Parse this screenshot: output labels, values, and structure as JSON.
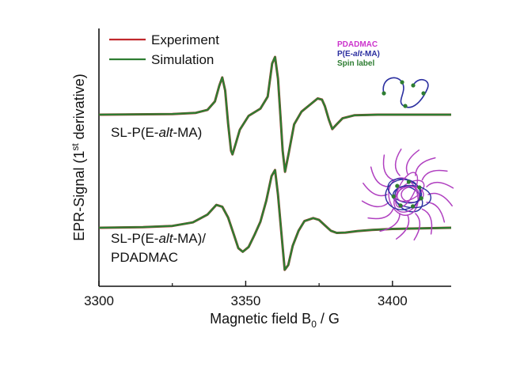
{
  "chart_data": {
    "type": "line",
    "xlabel_main": "Magnetic field B",
    "xlabel_sub": "0",
    "xlabel_unit": " / G",
    "ylabel_pre": "EPR-Signal (1",
    "ylabel_sup": "st",
    "ylabel_post": " derivative)",
    "xlim": [
      3300,
      3420
    ],
    "x_ticks": [
      "3300",
      "3350",
      "3400"
    ],
    "legend": [
      {
        "label": "Experiment",
        "color": "#c0282d"
      },
      {
        "label": "Simulation",
        "color": "#2e7d32"
      }
    ],
    "curve_labels": {
      "top": {
        "pre": "SL-P(E-",
        "ital": "alt",
        "post": "-MA)"
      },
      "bottom_line1": {
        "pre": "SL-P(E-",
        "ital": "alt",
        "post": "-MA)/"
      },
      "bottom_line2": "PDADMAC"
    },
    "series": [
      {
        "name": "SL-P(E-alt-MA)",
        "points": [
          [
            3300,
            0
          ],
          [
            3325,
            0.1
          ],
          [
            3333,
            0.3
          ],
          [
            3337,
            0.8
          ],
          [
            3339.5,
            2.2
          ],
          [
            3341,
            4.8
          ],
          [
            3342,
            6.2
          ],
          [
            3343,
            4
          ],
          [
            3344,
            -1.5
          ],
          [
            3345,
            -6
          ],
          [
            3345.5,
            -6.6
          ],
          [
            3346.5,
            -5
          ],
          [
            3348,
            -2.5
          ],
          [
            3351,
            -0.2
          ],
          [
            3355,
            1
          ],
          [
            3357.5,
            3
          ],
          [
            3359,
            8.5
          ],
          [
            3360,
            9.6
          ],
          [
            3361,
            6
          ],
          [
            3361.8,
            0
          ],
          [
            3362.6,
            -6
          ],
          [
            3363.4,
            -9.5
          ],
          [
            3364.6,
            -6.5
          ],
          [
            3366.5,
            -1.6
          ],
          [
            3369,
            0.5
          ],
          [
            3372,
            1.7
          ],
          [
            3374.5,
            2.7
          ],
          [
            3376,
            2.5
          ],
          [
            3377,
            1.4
          ],
          [
            3378.3,
            -0.8
          ],
          [
            3379.5,
            -2.4
          ],
          [
            3381,
            -1.6
          ],
          [
            3383,
            -0.6
          ],
          [
            3387,
            -0.1
          ],
          [
            3395,
            0
          ],
          [
            3420,
            0
          ]
        ]
      },
      {
        "name": "SL-P(E-alt-MA)/PDADMAC",
        "points": [
          [
            3300,
            0
          ],
          [
            3315,
            0.1
          ],
          [
            3325,
            0.3
          ],
          [
            3332,
            0.9
          ],
          [
            3337,
            2.2
          ],
          [
            3340,
            3.8
          ],
          [
            3342,
            3.5
          ],
          [
            3344,
            1.7
          ],
          [
            3346,
            -1.2
          ],
          [
            3347.5,
            -3.4
          ],
          [
            3349,
            -4
          ],
          [
            3351,
            -3.2
          ],
          [
            3353,
            -1.2
          ],
          [
            3355,
            1
          ],
          [
            3357,
            4.5
          ],
          [
            3358.8,
            8.6
          ],
          [
            3360,
            9.6
          ],
          [
            3361,
            5.5
          ],
          [
            3362,
            0
          ],
          [
            3363.3,
            -7
          ],
          [
            3364.5,
            -6.2
          ],
          [
            3366,
            -3
          ],
          [
            3368,
            -0.5
          ],
          [
            3370,
            1.1
          ],
          [
            3373,
            1.6
          ],
          [
            3375,
            1.3
          ],
          [
            3377,
            0.4
          ],
          [
            3379,
            -0.5
          ],
          [
            3381,
            -0.85
          ],
          [
            3384,
            -0.8
          ],
          [
            3388,
            -0.55
          ],
          [
            3393,
            -0.35
          ],
          [
            3400,
            -0.2
          ],
          [
            3420,
            0
          ]
        ]
      }
    ],
    "inset_legend": [
      {
        "label": "PDADMAC",
        "color": "#cc33cc"
      },
      {
        "pre": "P(E-",
        "ital": "alt",
        "post": "-MA)",
        "color": "#2b2fa0"
      },
      {
        "label": "Spin label",
        "color": "#2e7d32"
      }
    ]
  }
}
